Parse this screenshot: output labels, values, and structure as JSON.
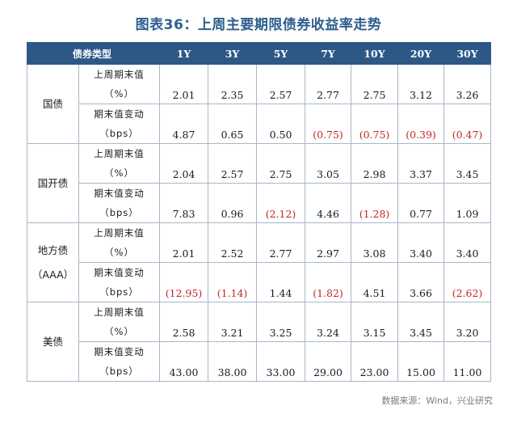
{
  "title": "图表36：上周主要期限债券收益率走势",
  "table": {
    "type_header": "债券类型",
    "columns": [
      "1Y",
      "3Y",
      "5Y",
      "7Y",
      "10Y",
      "20Y",
      "30Y"
    ],
    "groups": [
      {
        "category": [
          "国债"
        ],
        "rows": [
          {
            "metric": [
              "上周期末值",
              "（%）"
            ],
            "values": [
              "2.01",
              "2.35",
              "2.57",
              "2.77",
              "2.75",
              "3.12",
              "3.26"
            ],
            "negative": [
              false,
              false,
              false,
              false,
              false,
              false,
              false
            ]
          },
          {
            "metric": [
              "期末值变动",
              "（bps）"
            ],
            "values": [
              "4.87",
              "0.65",
              "0.50",
              "(0.75)",
              "(0.75)",
              "(0.39)",
              "(0.47)"
            ],
            "negative": [
              false,
              false,
              false,
              true,
              true,
              true,
              true
            ]
          }
        ]
      },
      {
        "category": [
          "国开债"
        ],
        "rows": [
          {
            "metric": [
              "上周期末值",
              "（%）"
            ],
            "values": [
              "2.04",
              "2.57",
              "2.75",
              "3.05",
              "2.98",
              "3.37",
              "3.45"
            ],
            "negative": [
              false,
              false,
              false,
              false,
              false,
              false,
              false
            ]
          },
          {
            "metric": [
              "期末值变动",
              "（bps）"
            ],
            "values": [
              "7.83",
              "0.96",
              "(2.12)",
              "4.46",
              "(1.28)",
              "0.77",
              "1.09"
            ],
            "negative": [
              false,
              false,
              true,
              false,
              true,
              false,
              false
            ]
          }
        ]
      },
      {
        "category": [
          "地方债",
          "（AAA）"
        ],
        "rows": [
          {
            "metric": [
              "上周期末值",
              "（%）"
            ],
            "values": [
              "2.01",
              "2.52",
              "2.77",
              "2.97",
              "3.08",
              "3.40",
              "3.40"
            ],
            "negative": [
              false,
              false,
              false,
              false,
              false,
              false,
              false
            ]
          },
          {
            "metric": [
              "期末值变动",
              "（bps）"
            ],
            "values": [
              "(12.95)",
              "(1.14)",
              "1.44",
              "(1.82)",
              "4.51",
              "3.66",
              "(2.62)"
            ],
            "negative": [
              true,
              true,
              false,
              true,
              false,
              false,
              true
            ]
          }
        ]
      },
      {
        "category": [
          "美债"
        ],
        "rows": [
          {
            "metric": [
              "上周期末值",
              "（%）"
            ],
            "values": [
              "2.58",
              "3.21",
              "3.25",
              "3.24",
              "3.15",
              "3.45",
              "3.20"
            ],
            "negative": [
              false,
              false,
              false,
              false,
              false,
              false,
              false
            ]
          },
          {
            "metric": [
              "期末值变动",
              "（bps）"
            ],
            "values": [
              "43.00",
              "38.00",
              "33.00",
              "29.00",
              "23.00",
              "15.00",
              "11.00"
            ],
            "negative": [
              false,
              false,
              false,
              false,
              false,
              false,
              false
            ]
          }
        ]
      }
    ]
  },
  "colors": {
    "title": "#2e5f8e",
    "header_bg": "#2d5886",
    "negative": "#c0282e",
    "border": "#a7b7c9"
  },
  "source": "数据来源：Wind，兴业研究"
}
